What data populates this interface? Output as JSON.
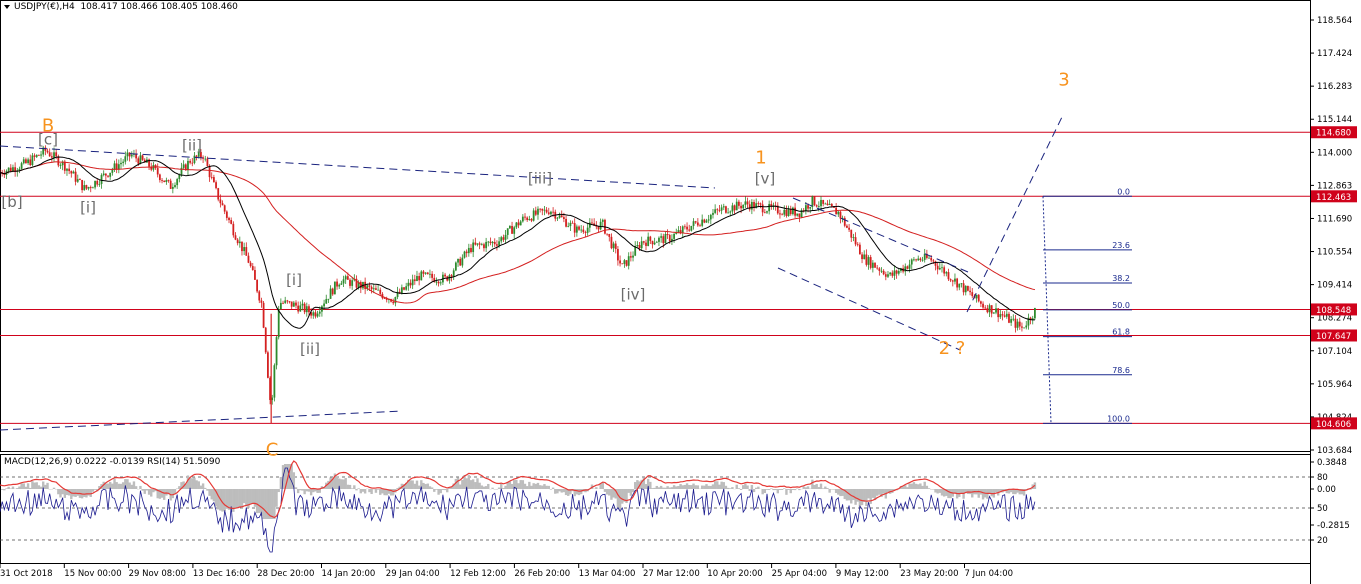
{
  "header": {
    "symbol_tf": "USDJPY(€),H4",
    "ohlc": "108.417 108.466 108.405 108.460"
  },
  "indicator_header": "MACD(12,26,9) 0.0222 -0.0139  RSI(14) 51.5090",
  "colors": {
    "bull_candle": "#2e8b2e",
    "bear_candle": "#d42020",
    "hline": "#d0021b",
    "ma_slow": "#d42020",
    "ma_fast": "#000000",
    "trend_dash": "#1a237e",
    "wave_orange": "#f7931e",
    "wave_gray": "#6b6b6b",
    "fib": "#1a2a8e",
    "macd_hist": "#bdbdbd",
    "rsi": "#1a1a8e",
    "signal": "#e53935"
  },
  "chart_data": {
    "type": "candlestick",
    "symbol": "USDJPY",
    "timeframe": "H4",
    "ylim": [
      103.684,
      118.564
    ],
    "y_ticks": [
      "118.564",
      "117.424",
      "116.283",
      "115.144",
      "114.000",
      "112.863",
      "111.690",
      "110.554",
      "109.414",
      "108.274",
      "107.104",
      "105.964",
      "104.824",
      "103.684"
    ],
    "x_ticks": [
      "31 Oct 2018",
      "15 Nov 00:00",
      "29 Nov 08:00",
      "13 Dec 16:00",
      "28 Dec 20:00",
      "14 Jan 20:00",
      "29 Jan 04:00",
      "12 Feb 12:00",
      "26 Feb 20:00",
      "13 Mar 04:00",
      "27 Mar 12:00",
      "10 Apr 20:00",
      "25 Apr 04:00",
      "9 May 12:00",
      "23 May 20:00",
      "7 Jun 04:00"
    ],
    "price_path": [
      [
        0,
        113.3
      ],
      [
        0.02,
        113.6
      ],
      [
        0.035,
        114.05
      ],
      [
        0.05,
        113.5
      ],
      [
        0.065,
        112.7
      ],
      [
        0.08,
        113.2
      ],
      [
        0.1,
        113.9
      ],
      [
        0.115,
        113.5
      ],
      [
        0.13,
        112.8
      ],
      [
        0.145,
        113.7
      ],
      [
        0.155,
        113.9
      ],
      [
        0.165,
        112.6
      ],
      [
        0.178,
        111.3
      ],
      [
        0.19,
        110.2
      ],
      [
        0.2,
        108.7
      ],
      [
        0.207,
        105.0
      ],
      [
        0.213,
        108.8
      ],
      [
        0.225,
        108.7
      ],
      [
        0.24,
        108.4
      ],
      [
        0.26,
        109.6
      ],
      [
        0.28,
        109.3
      ],
      [
        0.3,
        108.9
      ],
      [
        0.32,
        109.7
      ],
      [
        0.34,
        109.6
      ],
      [
        0.36,
        110.7
      ],
      [
        0.38,
        110.9
      ],
      [
        0.4,
        111.7
      ],
      [
        0.42,
        112.0
      ],
      [
        0.44,
        111.3
      ],
      [
        0.46,
        111.5
      ],
      [
        0.475,
        110.0
      ],
      [
        0.49,
        110.9
      ],
      [
        0.51,
        111.0
      ],
      [
        0.53,
        111.5
      ],
      [
        0.55,
        112.0
      ],
      [
        0.57,
        112.2
      ],
      [
        0.59,
        112.0
      ],
      [
        0.61,
        111.9
      ],
      [
        0.62,
        112.3
      ],
      [
        0.64,
        111.9
      ],
      [
        0.66,
        110.3
      ],
      [
        0.68,
        109.7
      ],
      [
        0.7,
        110.3
      ],
      [
        0.71,
        110.3
      ],
      [
        0.73,
        109.5
      ],
      [
        0.75,
        108.7
      ],
      [
        0.76,
        108.5
      ],
      [
        0.78,
        107.9
      ],
      [
        0.79,
        108.5
      ]
    ],
    "horizontal_levels": [
      {
        "price": 114.68,
        "label": "114.680"
      },
      {
        "price": 112.463,
        "label": "112.463"
      },
      {
        "price": 108.548,
        "label": "108.548"
      },
      {
        "price": 107.647,
        "label": "107.647"
      },
      {
        "price": 104.606,
        "label": "104.606"
      }
    ],
    "fibonacci": {
      "from": 112.463,
      "to": 104.606,
      "levels": [
        "0.0",
        "23.6",
        "38.2",
        "50.0",
        "61.8",
        "78.6",
        "100.0"
      ]
    },
    "wave_labels": [
      {
        "text": "B",
        "price": 114.7,
        "style": "orange"
      },
      {
        "text": "[c]",
        "price": 114.25,
        "style": "gray"
      },
      {
        "text": "[b]",
        "price": 112.1,
        "style": "gray"
      },
      {
        "text": "[i]",
        "price": 111.9,
        "style": "gray"
      },
      {
        "text": "[ii]",
        "price": 114.05,
        "style": "gray"
      },
      {
        "text": "[i]",
        "price": 109.4,
        "style": "gray"
      },
      {
        "text": "[ii]",
        "price": 107.0,
        "style": "gray"
      },
      {
        "text": "C",
        "price": 103.5,
        "style": "orange"
      },
      {
        "text": "[iii]",
        "price": 112.9,
        "style": "gray"
      },
      {
        "text": "[iv]",
        "price": 108.9,
        "style": "gray"
      },
      {
        "text": "1",
        "price": 113.6,
        "style": "orange"
      },
      {
        "text": "[v]",
        "price": 112.9,
        "style": "gray"
      },
      {
        "text": "2 ?",
        "price": 107.0,
        "style": "orange"
      },
      {
        "text": "3",
        "price": 116.3,
        "style": "orange"
      }
    ],
    "indicators": {
      "macd": {
        "fast": 12,
        "slow": 26,
        "signal": 9,
        "main": 0.0222,
        "signal_value": -0.0139
      },
      "rsi": {
        "period": 14,
        "value": 51.509
      },
      "scale_labels": [
        "0.3848",
        "80",
        "0.00",
        "50",
        "-0.2815",
        "20"
      ]
    }
  }
}
